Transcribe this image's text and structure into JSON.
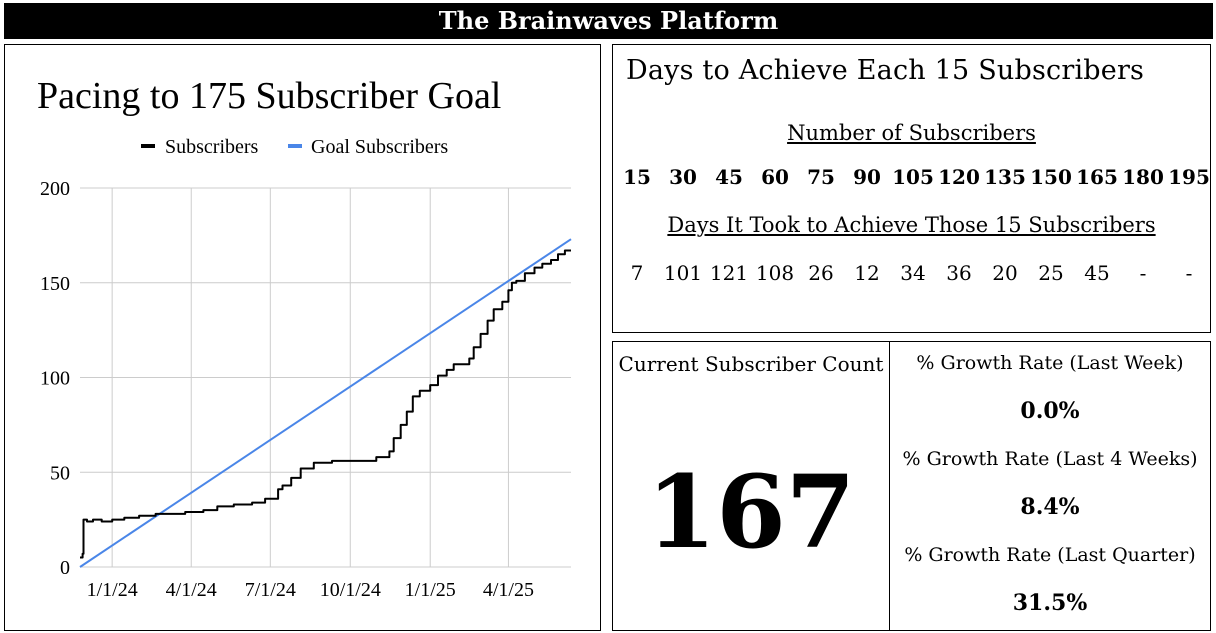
{
  "header": {
    "title": "The Brainwaves Platform"
  },
  "chart_data": {
    "type": "line",
    "title": "Pacing to 175 Subscriber Goal",
    "legend": [
      "Subscribers",
      "Goal Subscribers"
    ],
    "legend_position": "top",
    "xlabel": "",
    "ylabel": "",
    "ylim": [
      0,
      200
    ],
    "yticks": [
      0,
      50,
      100,
      150,
      200
    ],
    "xlim": [
      "2023-11-25",
      "2025-06-12"
    ],
    "xticks": [
      "1/1/24",
      "4/1/24",
      "7/1/24",
      "10/1/24",
      "1/1/25",
      "4/1/25"
    ],
    "xtick_dates": [
      "2024-01-01",
      "2024-04-01",
      "2024-07-01",
      "2024-10-01",
      "2025-01-01",
      "2025-04-01"
    ],
    "grid": true,
    "series": [
      {
        "name": "Subscribers",
        "color": "#000000",
        "points": [
          [
            "2023-11-25",
            5
          ],
          [
            "2023-11-28",
            7
          ],
          [
            "2023-11-29",
            25
          ],
          [
            "2023-12-03",
            24
          ],
          [
            "2023-12-10",
            25
          ],
          [
            "2023-12-20",
            24
          ],
          [
            "2024-01-01",
            25
          ],
          [
            "2024-01-15",
            26
          ],
          [
            "2024-02-01",
            27
          ],
          [
            "2024-02-20",
            28
          ],
          [
            "2024-03-10",
            28
          ],
          [
            "2024-03-25",
            29
          ],
          [
            "2024-04-15",
            30
          ],
          [
            "2024-05-01",
            32
          ],
          [
            "2024-05-20",
            33
          ],
          [
            "2024-06-10",
            34
          ],
          [
            "2024-06-25",
            36
          ],
          [
            "2024-07-05",
            36
          ],
          [
            "2024-07-10",
            41
          ],
          [
            "2024-07-15",
            43
          ],
          [
            "2024-07-25",
            47
          ],
          [
            "2024-08-05",
            52
          ],
          [
            "2024-08-20",
            55
          ],
          [
            "2024-09-01",
            55
          ],
          [
            "2024-09-10",
            56
          ],
          [
            "2024-09-30",
            56
          ],
          [
            "2024-10-20",
            56
          ],
          [
            "2024-10-31",
            58
          ],
          [
            "2024-11-15",
            61
          ],
          [
            "2024-11-20",
            68
          ],
          [
            "2024-11-28",
            75
          ],
          [
            "2024-12-05",
            82
          ],
          [
            "2024-12-12",
            90
          ],
          [
            "2024-12-20",
            93
          ],
          [
            "2025-01-01",
            96
          ],
          [
            "2025-01-10",
            101
          ],
          [
            "2025-01-20",
            104
          ],
          [
            "2025-01-28",
            107
          ],
          [
            "2025-02-10",
            107
          ],
          [
            "2025-02-15",
            110
          ],
          [
            "2025-02-20",
            116
          ],
          [
            "2025-02-28",
            123
          ],
          [
            "2025-03-08",
            130
          ],
          [
            "2025-03-15",
            136
          ],
          [
            "2025-03-25",
            140
          ],
          [
            "2025-04-01",
            146
          ],
          [
            "2025-04-05",
            150
          ],
          [
            "2025-04-10",
            151
          ],
          [
            "2025-04-20",
            155
          ],
          [
            "2025-05-01",
            158
          ],
          [
            "2025-05-10",
            160
          ],
          [
            "2025-05-20",
            162
          ],
          [
            "2025-05-28",
            165
          ],
          [
            "2025-06-05",
            167
          ],
          [
            "2025-06-12",
            167
          ]
        ]
      },
      {
        "name": "Goal Subscribers",
        "color": "#4a86e8",
        "points": [
          [
            "2023-11-25",
            0
          ],
          [
            "2025-06-12",
            173
          ]
        ]
      }
    ]
  },
  "days_panel": {
    "title": "Days to Achieve Each 15 Subscribers",
    "number_header": "Number of Subscribers",
    "milestones": [
      "15",
      "30",
      "45",
      "60",
      "75",
      "90",
      "105",
      "120",
      "135",
      "150",
      "165",
      "180",
      "195"
    ],
    "days_header": "Days It Took to Achieve Those 15 Subscribers",
    "days": [
      "7",
      "101",
      "121",
      "108",
      "26",
      "12",
      "34",
      "36",
      "20",
      "25",
      "45",
      "-",
      "-"
    ]
  },
  "stats": {
    "count_label": "Current Subscriber Count",
    "count_value": "167",
    "rates": [
      {
        "label": "% Growth Rate (Last Week)",
        "value": "0.0%"
      },
      {
        "label": "% Growth Rate (Last 4 Weeks)",
        "value": "8.4%"
      },
      {
        "label": "% Growth Rate (Last Quarter)",
        "value": "31.5%"
      }
    ]
  }
}
